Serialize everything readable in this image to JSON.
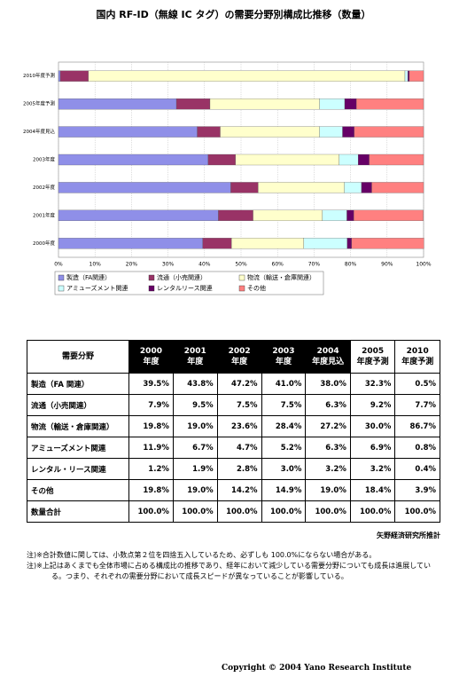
{
  "title": "国内 RF-ID（無線 IC タグ）の需要分野別構成比推移（数量）",
  "chart_data": {
    "type": "stacked-bar-horizontal",
    "categories": [
      "2010年度予測",
      "2005年度予測",
      "2004年度見込",
      "2003年度",
      "2002年度",
      "2001年度",
      "2000年度"
    ],
    "series": [
      {
        "name": "製造（FA関連）",
        "color": "#8f8fe8",
        "values": [
          0.5,
          32.3,
          38.0,
          41.0,
          47.2,
          43.8,
          39.5
        ]
      },
      {
        "name": "流通（小売関連）",
        "color": "#993366",
        "values": [
          7.7,
          9.2,
          6.3,
          7.5,
          7.5,
          9.5,
          7.9
        ]
      },
      {
        "name": "物流（輸送・倉庫関連）",
        "color": "#ffffcc",
        "values": [
          86.7,
          30.0,
          27.2,
          28.4,
          23.6,
          19.0,
          19.8
        ]
      },
      {
        "name": "アミューズメント関連",
        "color": "#ccffff",
        "values": [
          0.8,
          6.9,
          6.3,
          5.2,
          4.7,
          6.7,
          11.9
        ]
      },
      {
        "name": "レンタルリース関連",
        "color": "#660066",
        "values": [
          0.4,
          3.2,
          3.2,
          3.0,
          2.8,
          1.9,
          1.2
        ]
      },
      {
        "name": "その他",
        "color": "#ff8080",
        "values": [
          3.9,
          18.4,
          19.0,
          14.9,
          14.2,
          19.0,
          19.8
        ]
      }
    ],
    "xlim": [
      0,
      100
    ],
    "xticks": [
      {
        "value": 0,
        "label": "0%"
      },
      {
        "value": 10,
        "label": "10%"
      },
      {
        "value": 20,
        "label": "20%"
      },
      {
        "value": 30,
        "label": "30%"
      },
      {
        "value": 40,
        "label": "40%"
      },
      {
        "value": 50,
        "label": "50%"
      },
      {
        "value": 60,
        "label": "60%"
      },
      {
        "value": 70,
        "label": "70%"
      },
      {
        "value": 80,
        "label": "80%"
      },
      {
        "value": 90,
        "label": "90%"
      },
      {
        "value": 100,
        "label": "100%"
      }
    ],
    "grid": true
  },
  "table": {
    "header": [
      "需要分野",
      "2000\n年度",
      "2001\n年度",
      "2002\n年度",
      "2003\n年度",
      "2004\n年度見込",
      "2005\n年度予測",
      "2010\n年度予測"
    ],
    "rows": [
      [
        "製造（FA 関連）",
        "39.5%",
        "43.8%",
        "47.2%",
        "41.0%",
        "38.0%",
        "32.3%",
        "0.5%"
      ],
      [
        "流通（小売関連）",
        "7.9%",
        "9.5%",
        "7.5%",
        "7.5%",
        "6.3%",
        "9.2%",
        "7.7%"
      ],
      [
        "物流（輸送・倉庫関連）",
        "19.8%",
        "19.0%",
        "23.6%",
        "28.4%",
        "27.2%",
        "30.0%",
        "86.7%"
      ],
      [
        "アミューズメント関連",
        "11.9%",
        "6.7%",
        "4.7%",
        "5.2%",
        "6.3%",
        "6.9%",
        "0.8%"
      ],
      [
        "レンタル・リース関連",
        "1.2%",
        "1.9%",
        "2.8%",
        "3.0%",
        "3.2%",
        "3.2%",
        "0.4%"
      ],
      [
        "その他",
        "19.8%",
        "19.0%",
        "14.2%",
        "14.9%",
        "19.0%",
        "18.4%",
        "3.9%"
      ],
      [
        "数量合計",
        "100.0%",
        "100.0%",
        "100.0%",
        "100.0%",
        "100.0%",
        "100.0%",
        "100.0%"
      ]
    ]
  },
  "source": "矢野経済研究所推計",
  "notes": [
    "注)※合計数値に関しては、小数点第２位を四捨五入しているため、必ずしも 100.0%にならない場合がある。",
    "注)※上記はあくまでも全体市場に占める構成比の推移であり、経年において減少している需要分野についても成長は進展している。つまり、それぞれの需要分野において成長スピードが異なっていることが影響している。"
  ],
  "copyright": "Copyright © 2004 Yano Research Institute"
}
